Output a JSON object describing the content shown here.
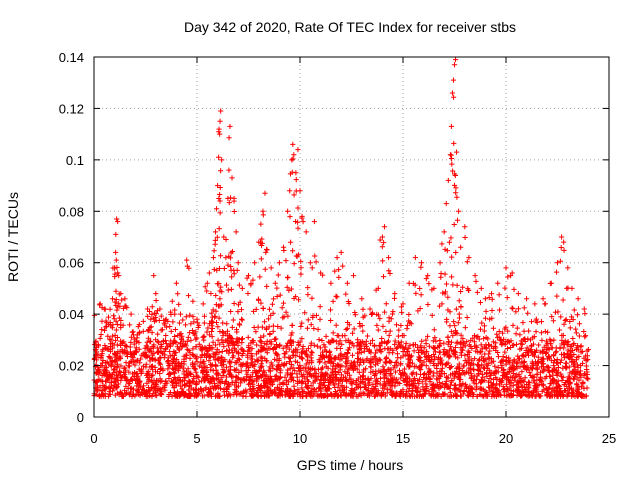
{
  "chart_data": {
    "type": "scatter",
    "title": "Day 342 of 2020, Rate Of TEC Index for receiver stbs",
    "xlabel": "GPS time / hours",
    "ylabel": "ROTI / TECUs",
    "xlim": [
      0,
      25
    ],
    "ylim": [
      0,
      0.14
    ],
    "xticks": [
      0,
      5,
      10,
      15,
      20,
      25
    ],
    "yticks": [
      0,
      0.02,
      0.04,
      0.06,
      0.08,
      0.1,
      0.12,
      0.14
    ],
    "xtick_labels": [
      "0",
      "5",
      "10",
      "15",
      "20",
      "25"
    ],
    "ytick_labels": [
      "0",
      "0.02",
      "0.04",
      "0.06",
      "0.08",
      "0.1",
      "0.12",
      "0.14"
    ],
    "grid": true,
    "marker": "+",
    "color": "#ff0000",
    "background_band": {
      "x_range": [
        0,
        24
      ],
      "y_range": [
        0.008,
        0.03
      ],
      "description_density": "dense"
    },
    "series": [
      {
        "values": [
          [
            0.3,
            0.044
          ],
          [
            0.5,
            0.042
          ],
          [
            0.7,
            0.036
          ],
          [
            0.9,
            0.046
          ],
          [
            1.0,
            0.058
          ],
          [
            1.05,
            0.064
          ],
          [
            1.1,
            0.077
          ],
          [
            1.15,
            0.076
          ],
          [
            1.2,
            0.055
          ],
          [
            1.3,
            0.048
          ],
          [
            1.5,
            0.046
          ],
          [
            1.8,
            0.04
          ],
          [
            2.2,
            0.036
          ],
          [
            2.6,
            0.042
          ],
          [
            2.9,
            0.055
          ],
          [
            3.0,
            0.048
          ],
          [
            3.2,
            0.042
          ],
          [
            3.5,
            0.038
          ],
          [
            3.8,
            0.045
          ],
          [
            4.0,
            0.052
          ],
          [
            4.2,
            0.04
          ],
          [
            4.5,
            0.061
          ],
          [
            4.8,
            0.045
          ],
          [
            5.0,
            0.038
          ],
          [
            5.3,
            0.044
          ],
          [
            5.5,
            0.052
          ],
          [
            5.6,
            0.056
          ],
          [
            5.8,
            0.062
          ],
          [
            5.9,
            0.072
          ],
          [
            5.95,
            0.081
          ],
          [
            6.0,
            0.09
          ],
          [
            6.05,
            0.101
          ],
          [
            6.1,
            0.11
          ],
          [
            6.12,
            0.115
          ],
          [
            6.15,
            0.119
          ],
          [
            6.2,
            0.1
          ],
          [
            6.3,
            0.07
          ],
          [
            6.4,
            0.062
          ],
          [
            6.5,
            0.085
          ],
          [
            6.55,
            0.096
          ],
          [
            6.6,
            0.113
          ],
          [
            6.7,
            0.093
          ],
          [
            6.8,
            0.085
          ],
          [
            6.9,
            0.072
          ],
          [
            7.0,
            0.06
          ],
          [
            7.2,
            0.05
          ],
          [
            7.5,
            0.055
          ],
          [
            7.8,
            0.06
          ],
          [
            8.0,
            0.068
          ],
          [
            8.1,
            0.075
          ],
          [
            8.2,
            0.08
          ],
          [
            8.3,
            0.087
          ],
          [
            8.4,
            0.065
          ],
          [
            8.6,
            0.058
          ],
          [
            8.8,
            0.052
          ],
          [
            9.0,
            0.06
          ],
          [
            9.2,
            0.066
          ],
          [
            9.4,
            0.08
          ],
          [
            9.5,
            0.088
          ],
          [
            9.6,
            0.1
          ],
          [
            9.65,
            0.106
          ],
          [
            9.7,
            0.102
          ],
          [
            9.8,
            0.095
          ],
          [
            9.9,
            0.104
          ],
          [
            10.0,
            0.088
          ],
          [
            10.1,
            0.078
          ],
          [
            10.3,
            0.072
          ],
          [
            10.5,
            0.06
          ],
          [
            10.7,
            0.076
          ],
          [
            11.0,
            0.056
          ],
          [
            11.5,
            0.052
          ],
          [
            11.8,
            0.062
          ],
          [
            12.0,
            0.064
          ],
          [
            12.3,
            0.052
          ],
          [
            12.6,
            0.055
          ],
          [
            13.0,
            0.046
          ],
          [
            13.4,
            0.042
          ],
          [
            13.8,
            0.05
          ],
          [
            14.0,
            0.07
          ],
          [
            14.1,
            0.074
          ],
          [
            14.3,
            0.062
          ],
          [
            14.6,
            0.048
          ],
          [
            15.0,
            0.044
          ],
          [
            15.3,
            0.052
          ],
          [
            15.6,
            0.062
          ],
          [
            15.9,
            0.06
          ],
          [
            16.2,
            0.055
          ],
          [
            16.5,
            0.05
          ],
          [
            16.8,
            0.06
          ],
          [
            17.0,
            0.072
          ],
          [
            17.1,
            0.083
          ],
          [
            17.2,
            0.092
          ],
          [
            17.3,
            0.102
          ],
          [
            17.35,
            0.113
          ],
          [
            17.4,
            0.126
          ],
          [
            17.45,
            0.131
          ],
          [
            17.5,
            0.137
          ],
          [
            17.55,
            0.139
          ],
          [
            17.6,
            0.103
          ],
          [
            17.7,
            0.08
          ],
          [
            17.8,
            0.066
          ],
          [
            18.0,
            0.074
          ],
          [
            18.2,
            0.062
          ],
          [
            18.5,
            0.055
          ],
          [
            18.8,
            0.05
          ],
          [
            19.0,
            0.046
          ],
          [
            19.3,
            0.048
          ],
          [
            19.6,
            0.052
          ],
          [
            20.0,
            0.058
          ],
          [
            20.3,
            0.056
          ],
          [
            20.6,
            0.048
          ],
          [
            21.0,
            0.046
          ],
          [
            21.4,
            0.044
          ],
          [
            21.8,
            0.046
          ],
          [
            22.2,
            0.052
          ],
          [
            22.5,
            0.06
          ],
          [
            22.7,
            0.07
          ],
          [
            22.8,
            0.068
          ],
          [
            23.0,
            0.058
          ],
          [
            23.2,
            0.05
          ],
          [
            23.5,
            0.046
          ],
          [
            23.8,
            0.042
          ]
        ]
      }
    ]
  }
}
